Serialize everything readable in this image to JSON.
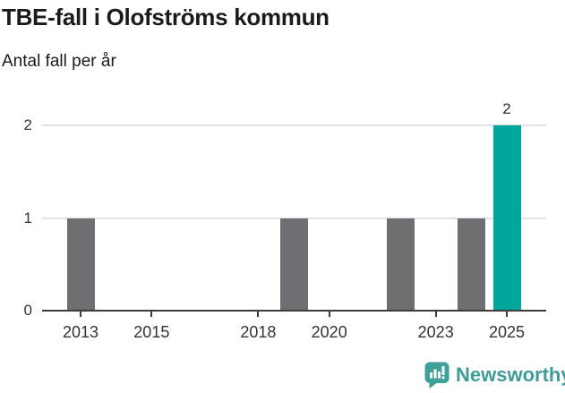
{
  "header": {
    "title": "TBE-fall i Olofströms kommun",
    "subtitle": "Antal fall per år"
  },
  "chart_data": {
    "type": "bar",
    "title": "TBE-fall i Olofströms kommun",
    "subtitle": "Antal fall per år",
    "xlabel": "",
    "ylabel": "Antal fall per år",
    "categories": [
      2013,
      2014,
      2015,
      2016,
      2017,
      2018,
      2019,
      2020,
      2021,
      2022,
      2023,
      2024,
      2025
    ],
    "values": [
      1,
      0,
      0,
      0,
      0,
      0,
      1,
      0,
      0,
      1,
      0,
      1,
      2
    ],
    "highlight_category": 2025,
    "bar_labels": [
      {
        "category": 2025,
        "text": "2"
      }
    ],
    "y_ticks": [
      "0",
      "1",
      "2"
    ],
    "x_ticks": [
      "2013",
      "2015",
      "2018",
      "2020",
      "2023",
      "2025"
    ],
    "ylim": [
      0,
      2
    ],
    "grid": "horizontal",
    "legend": "none",
    "colors": {
      "bar": "#6e6e73",
      "highlight": "#00a59b",
      "gridline": "#e3e3e3",
      "axis": "#3c3c3c",
      "tick_text": "#333333"
    }
  },
  "footer": {
    "brand": "Newsworthy",
    "brand_color": "#3d9c98",
    "logo_icon": "speech-bubble-bar-chart-exclamation",
    "logo_bg": "#3fa09a"
  }
}
